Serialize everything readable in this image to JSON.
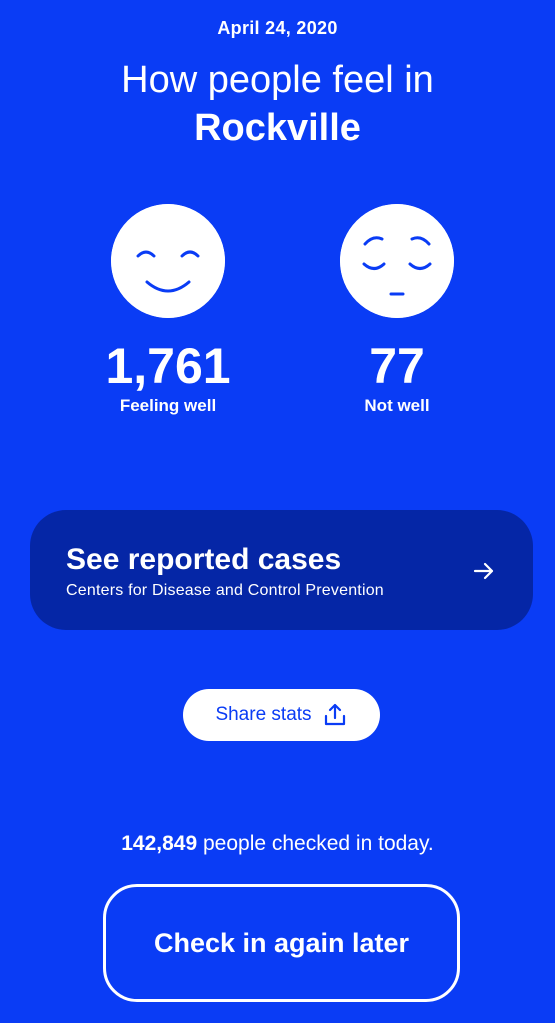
{
  "date": "April 24, 2020",
  "headline": {
    "prefix": "How people feel in",
    "city": "Rockville"
  },
  "stats": {
    "well": {
      "count": "1,761",
      "label": "Feeling well",
      "icon": "smiling-face-icon"
    },
    "not_well": {
      "count": "77",
      "label": "Not well",
      "icon": "sad-face-icon"
    }
  },
  "cases_card": {
    "title": "See reported cases",
    "subtitle": "Centers for Disease and Control Prevention",
    "icon": "arrow-right-icon"
  },
  "share": {
    "label": "Share stats",
    "icon": "share-icon"
  },
  "checked_in": {
    "count": "142,849",
    "text": "people checked in today."
  },
  "checkin_button": {
    "label": "Check in again later"
  },
  "colors": {
    "background": "#0a3cf5",
    "card": "#0526a6",
    "text": "#ffffff"
  }
}
